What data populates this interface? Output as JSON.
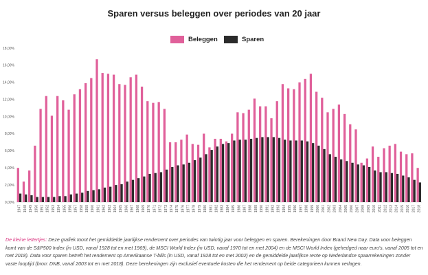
{
  "chart_data": {
    "type": "bar",
    "title": "Sparen versus beleggen over periodes van 20 jaar",
    "ylim": [
      0,
      18
    ],
    "y_ticks": [
      "0,00%",
      "2,00%",
      "4,00%",
      "6,00%",
      "8,00%",
      "10,00%",
      "12,00%",
      "14,00%",
      "16,00%",
      "18,00%"
    ],
    "grid": false,
    "legend_position": "top-center",
    "categories": [
      "1947",
      "1948",
      "1949",
      "1950",
      "1951",
      "1952",
      "1953",
      "1954",
      "1955",
      "1956",
      "1957",
      "1958",
      "1959",
      "1960",
      "1961",
      "1962",
      "1963",
      "1964",
      "1965",
      "1966",
      "1967",
      "1968",
      "1969",
      "1970",
      "1971",
      "1972",
      "1973",
      "1974",
      "1975",
      "1976",
      "1977",
      "1978",
      "1979",
      "1980",
      "1981",
      "1982",
      "1983",
      "1984",
      "1985",
      "1986",
      "1987",
      "1988",
      "1989",
      "1990",
      "1991",
      "1992",
      "1993",
      "1994",
      "1995",
      "1996",
      "1997",
      "1998",
      "1999",
      "2000",
      "2001",
      "2002",
      "2003",
      "2004",
      "2005",
      "2006",
      "2007",
      "2008",
      "2009",
      "2010",
      "2011",
      "2012",
      "2013",
      "2014",
      "2015",
      "2016",
      "2017",
      "2018"
    ],
    "series": [
      {
        "name": "Beleggen",
        "color": "#e0609a",
        "values": [
          4.0,
          2.4,
          3.7,
          6.6,
          10.9,
          12.4,
          10.1,
          12.4,
          11.9,
          10.8,
          12.6,
          13.2,
          13.9,
          14.5,
          16.7,
          15.1,
          15.0,
          14.9,
          13.8,
          13.7,
          14.6,
          14.9,
          13.5,
          11.8,
          11.6,
          11.7,
          10.9,
          7.0,
          7.0,
          7.3,
          7.9,
          6.8,
          6.7,
          8.0,
          6.4,
          7.4,
          7.4,
          7.1,
          8.0,
          10.5,
          10.4,
          10.8,
          12.1,
          11.2,
          11.2,
          9.8,
          11.8,
          13.8,
          13.3,
          13.2,
          14.0,
          14.4,
          15.0,
          12.9,
          12.2,
          10.5,
          10.9,
          11.4,
          10.3,
          9.1,
          8.5,
          4.6,
          5.1,
          6.5,
          5.3,
          6.3,
          6.6,
          6.8,
          5.9,
          5.6,
          5.7,
          4.0
        ]
      },
      {
        "name": "Sparen",
        "color": "#2b2b2b",
        "values": [
          1.0,
          0.9,
          0.8,
          0.6,
          0.6,
          0.6,
          0.6,
          0.7,
          0.7,
          0.9,
          1.0,
          1.1,
          1.3,
          1.4,
          1.5,
          1.7,
          1.8,
          2.0,
          2.1,
          2.4,
          2.6,
          2.8,
          3.0,
          3.3,
          3.4,
          3.5,
          3.8,
          4.1,
          4.3,
          4.4,
          4.6,
          4.9,
          5.2,
          5.6,
          6.1,
          6.5,
          6.8,
          6.9,
          7.2,
          7.3,
          7.3,
          7.4,
          7.5,
          7.6,
          7.6,
          7.6,
          7.5,
          7.3,
          7.2,
          7.2,
          7.2,
          7.1,
          6.9,
          6.6,
          6.2,
          5.6,
          5.3,
          5.0,
          4.8,
          4.6,
          4.4,
          4.3,
          4.1,
          3.7,
          3.5,
          3.5,
          3.4,
          3.3,
          3.1,
          2.9,
          2.6,
          2.3
        ]
      }
    ]
  },
  "footnote": {
    "lead": "De kleine lettertjes:",
    "text": " Deze grafiek toont het gemiddelde jaarlijkse rendement over periodes van twintig jaar voor beleggen en sparen. Berekeningen door Brand New Day. Data voor beleggen komt van de S&P500 Index (in USD, vanaf 1928 tot en met 1969), de MSCI World Index (in USD, vanaf 1970 tot en met 2004) en de MSCI World Index (gehedged naar euro's, vanaf 2005 tot en met 2018). Data voor sparen betreft het rendement op Amerikaanse T-bills (in USD, vanaf 1928 tot en met 2002) en de gemiddelde jaarlijkse rente op Nederlandse spaarrekeningen zonder vaste looptijd (bron: DNB, vanaf 2003 tot en met 2018). Deze berekeningen zijn exclusief eventuele kosten die het rendement op beide categorieen kunnen verlagen."
  }
}
